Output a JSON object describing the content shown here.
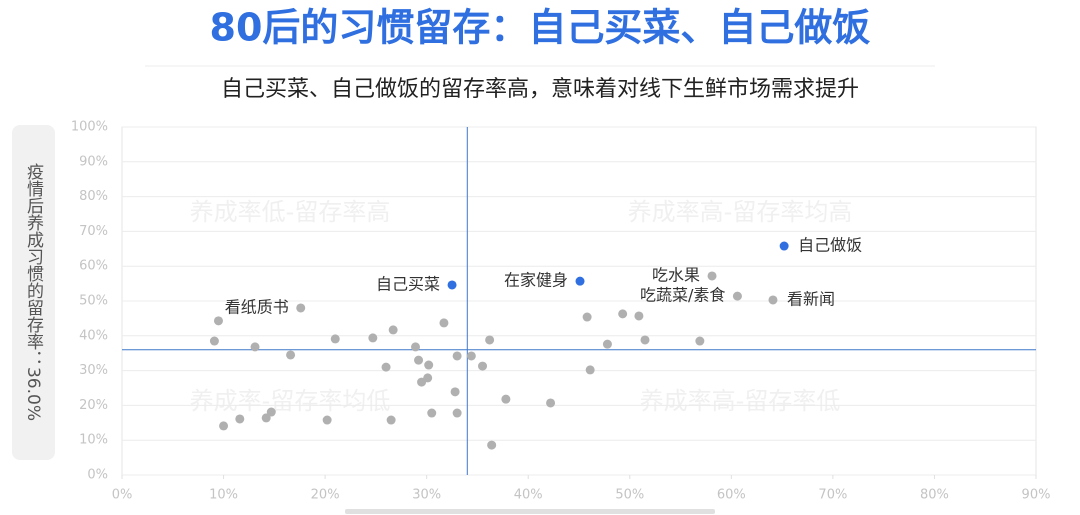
{
  "chart_data": {
    "type": "scatter",
    "title": "80后的习惯留存：自己买菜、自己做饭",
    "subtitle": "自己买菜、自己做饭的留存率高，意味着对线下生鲜市场需求提升",
    "y_label": "疫情后养成习惯的留存率：36.0%",
    "quadrant_labels": [
      "养成率低-留存率高",
      "养成率高-留存率均高",
      "养成率-留存率均低",
      "养成率高-留存率低"
    ],
    "ref_x": 34,
    "ref_y": 36.0,
    "xlim": [
      0,
      90
    ],
    "xticks": [
      {
        "value": 0,
        "label": "0%"
      },
      {
        "value": 10,
        "label": "10%"
      },
      {
        "value": 20,
        "label": "20%"
      },
      {
        "value": 30,
        "label": "30%"
      },
      {
        "value": 40,
        "label": "40%"
      },
      {
        "value": 50,
        "label": "50%"
      },
      {
        "value": 60,
        "label": "60%"
      },
      {
        "value": 70,
        "label": "70%"
      },
      {
        "value": 80,
        "label": "80%"
      },
      {
        "value": 90,
        "label": "90%"
      }
    ],
    "ylim": [
      0,
      100
    ],
    "yticks": [
      {
        "value": 0,
        "label": "0%"
      },
      {
        "value": 10,
        "label": "10%"
      },
      {
        "value": 20,
        "label": "20%"
      },
      {
        "value": 30,
        "label": "30%"
      },
      {
        "value": 40,
        "label": "40%"
      },
      {
        "value": 50,
        "label": "50%"
      },
      {
        "value": 60,
        "label": "60%"
      },
      {
        "value": 70,
        "label": "70%"
      },
      {
        "value": 80,
        "label": "80%"
      },
      {
        "value": 90,
        "label": "90%"
      },
      {
        "value": 100,
        "label": "100%"
      }
    ],
    "grid": true,
    "x": [
      65.2,
      32.5,
      45.1,
      17.6,
      58.1,
      60.6,
      64.1,
      9.5,
      9.1,
      13.1,
      16.6,
      21.0,
      24.7,
      26.7,
      31.7,
      28.9,
      29.2,
      33.0,
      34.4,
      36.2,
      35.5,
      26.0,
      30.2,
      30.1,
      29.5,
      32.8,
      37.8,
      42.2,
      46.1,
      45.8,
      49.3,
      50.9,
      51.5,
      47.8,
      56.9,
      10.0,
      11.6,
      14.2,
      14.7,
      20.2,
      26.5,
      30.5,
      33.0,
      36.4
    ],
    "y": [
      65.8,
      54.6,
      55.7,
      48.0,
      57.2,
      51.4,
      50.3,
      44.3,
      38.5,
      36.8,
      34.5,
      39.1,
      39.4,
      41.7,
      43.7,
      36.8,
      33.0,
      34.2,
      34.2,
      38.8,
      31.3,
      31.0,
      31.6,
      27.9,
      26.7,
      23.9,
      21.8,
      20.7,
      30.2,
      45.4,
      46.3,
      45.7,
      38.8,
      37.6,
      38.5,
      14.1,
      16.1,
      16.4,
      18.1,
      15.8,
      15.8,
      17.8,
      17.8,
      8.6
    ],
    "labels": [
      "自己做饭",
      "自己买菜",
      "在家健身",
      "看纸质书",
      "吃水果",
      "吃蔬菜/素食",
      "看新闻",
      null,
      null,
      null,
      null,
      null,
      null,
      null,
      null,
      null,
      null,
      null,
      null,
      null,
      null,
      null,
      null,
      null,
      null,
      null,
      null,
      null,
      null,
      null,
      null,
      null,
      null,
      null,
      null,
      null,
      null,
      null,
      null,
      null,
      null,
      null,
      null,
      null
    ],
    "colors": [
      "#2f6fe0",
      "#2f6fe0",
      "#2f6fe0",
      "#b0b0b0",
      "#b0b0b0",
      "#b0b0b0",
      "#b0b0b0",
      "#b0b0b0",
      "#b0b0b0",
      "#b0b0b0",
      "#b0b0b0",
      "#b0b0b0",
      "#b0b0b0",
      "#b0b0b0",
      "#b0b0b0",
      "#b0b0b0",
      "#b0b0b0",
      "#b0b0b0",
      "#b0b0b0",
      "#b0b0b0",
      "#b0b0b0",
      "#b0b0b0",
      "#b0b0b0",
      "#b0b0b0",
      "#b0b0b0",
      "#b0b0b0",
      "#b0b0b0",
      "#b0b0b0",
      "#b0b0b0",
      "#b0b0b0",
      "#b0b0b0",
      "#b0b0b0",
      "#b0b0b0",
      "#b0b0b0",
      "#b0b0b0",
      "#b0b0b0",
      "#b0b0b0",
      "#b0b0b0",
      "#b0b0b0",
      "#b0b0b0",
      "#b0b0b0",
      "#b0b0b0",
      "#b0b0b0",
      "#b0b0b0"
    ]
  }
}
